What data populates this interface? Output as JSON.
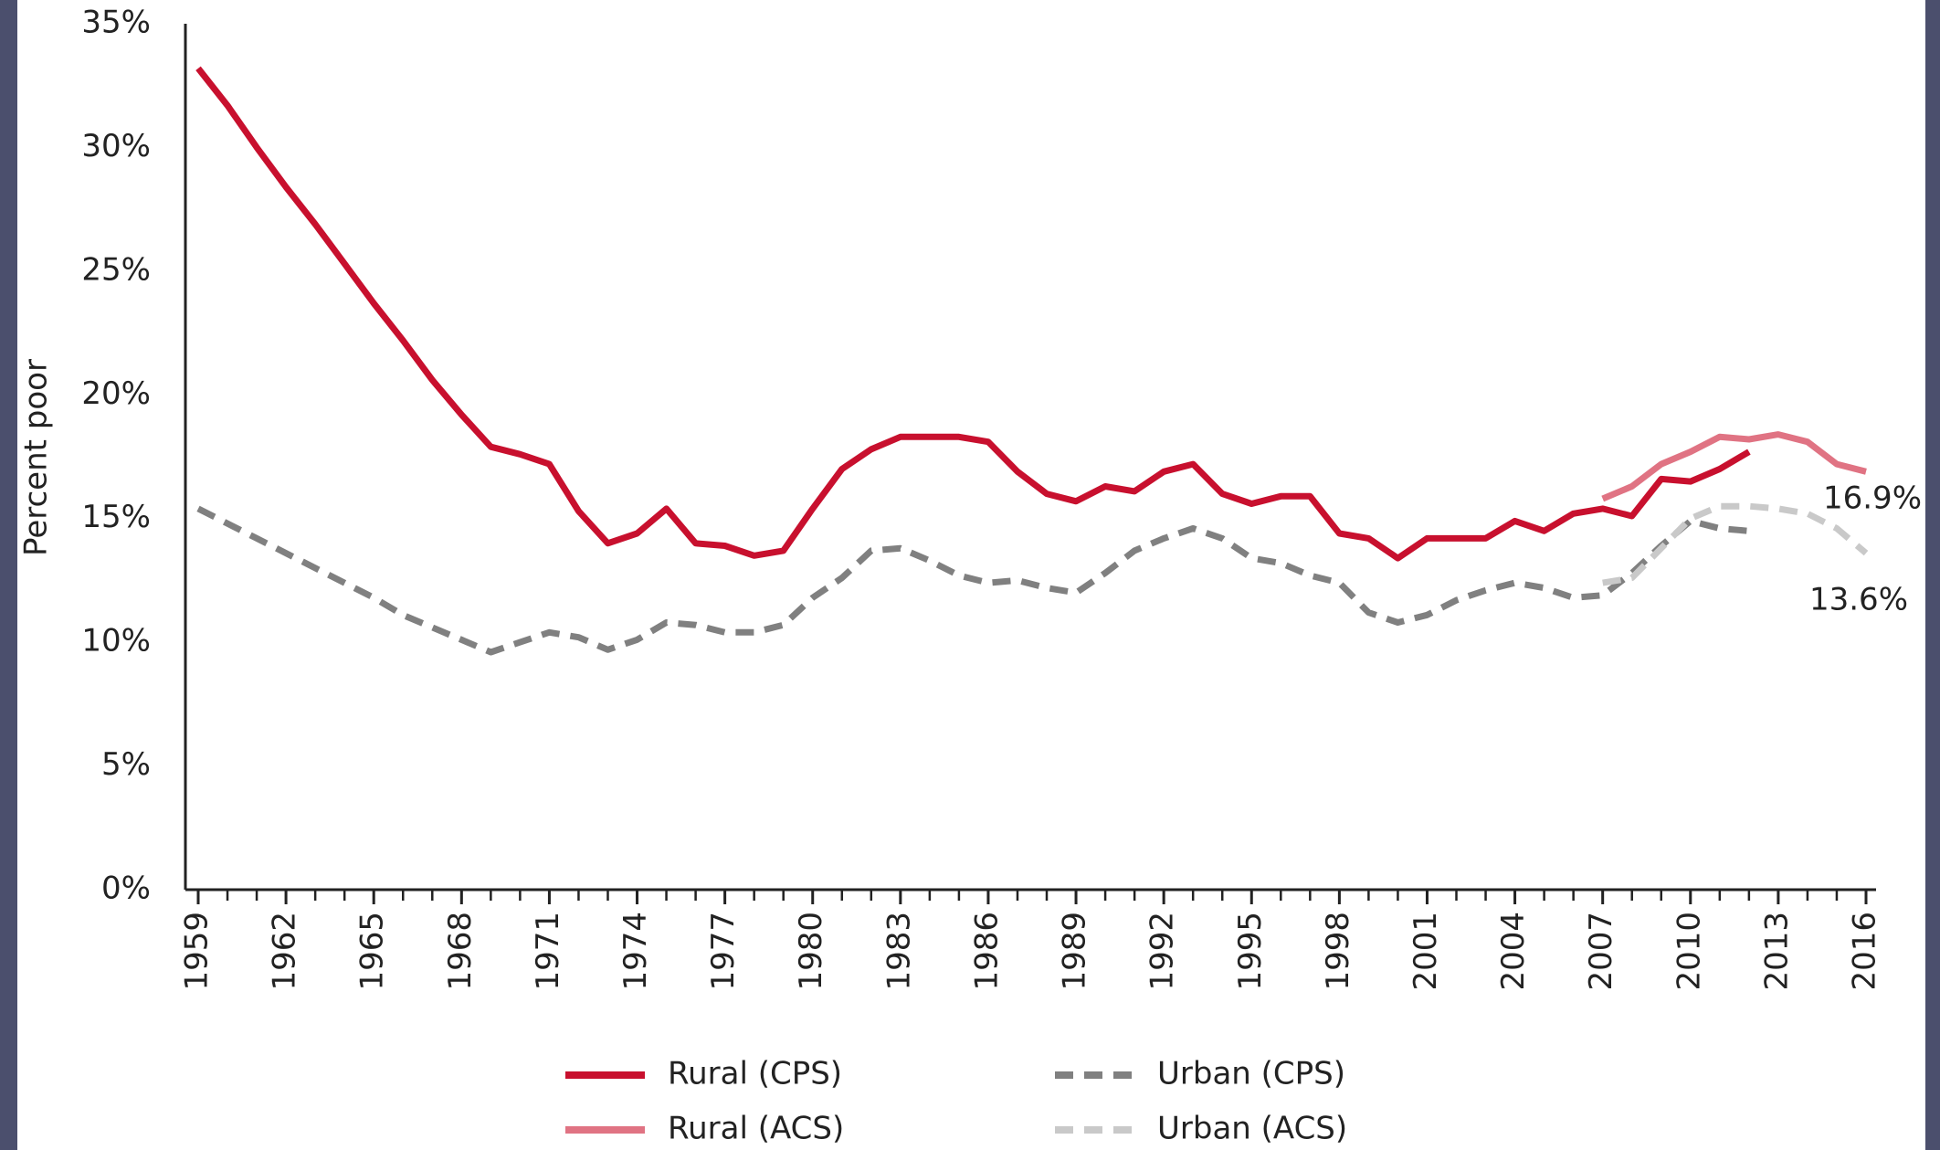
{
  "chart_data": {
    "type": "line",
    "y_label": "Percent poor",
    "x": [
      1959,
      1960,
      1961,
      1962,
      1963,
      1964,
      1965,
      1966,
      1967,
      1968,
      1969,
      1970,
      1971,
      1972,
      1973,
      1974,
      1975,
      1976,
      1977,
      1978,
      1979,
      1980,
      1981,
      1982,
      1983,
      1984,
      1985,
      1986,
      1987,
      1988,
      1989,
      1990,
      1991,
      1992,
      1993,
      1994,
      1995,
      1996,
      1997,
      1998,
      1999,
      2000,
      2001,
      2002,
      2003,
      2004,
      2005,
      2006,
      2007,
      2008,
      2009,
      2010,
      2011,
      2012,
      2013,
      2014,
      2015,
      2016
    ],
    "series": [
      {
        "name": "Rural (CPS)",
        "color": "#c8102e",
        "dashed": false,
        "values": [
          33.2,
          31.7,
          30.0,
          28.4,
          26.9,
          25.3,
          23.7,
          22.2,
          20.6,
          19.2,
          17.9,
          17.6,
          17.2,
          15.3,
          14.0,
          14.4,
          15.4,
          14.0,
          13.9,
          13.5,
          13.7,
          15.4,
          17.0,
          17.8,
          18.3,
          18.3,
          18.3,
          18.1,
          16.9,
          16.0,
          15.7,
          16.3,
          16.1,
          16.9,
          17.2,
          16.0,
          15.6,
          15.9,
          15.9,
          14.4,
          14.2,
          13.4,
          14.2,
          14.2,
          14.2,
          14.9,
          14.5,
          15.2,
          15.4,
          15.1,
          16.6,
          16.5,
          17.0,
          17.7,
          null,
          null,
          null,
          null
        ]
      },
      {
        "name": "Rural (ACS)",
        "color": "#e07383",
        "dashed": false,
        "values": [
          null,
          null,
          null,
          null,
          null,
          null,
          null,
          null,
          null,
          null,
          null,
          null,
          null,
          null,
          null,
          null,
          null,
          null,
          null,
          null,
          null,
          null,
          null,
          null,
          null,
          null,
          null,
          null,
          null,
          null,
          null,
          null,
          null,
          null,
          null,
          null,
          null,
          null,
          null,
          null,
          null,
          null,
          null,
          null,
          null,
          null,
          null,
          null,
          15.8,
          16.3,
          17.2,
          17.7,
          18.3,
          18.2,
          18.4,
          18.1,
          17.2,
          16.9
        ]
      },
      {
        "name": "Urban (CPS)",
        "color": "#808080",
        "dashed": true,
        "values": [
          15.4,
          14.8,
          14.2,
          13.6,
          13.0,
          12.4,
          11.8,
          11.1,
          10.6,
          10.1,
          9.6,
          10.0,
          10.4,
          10.2,
          9.7,
          10.1,
          10.8,
          10.7,
          10.4,
          10.4,
          10.7,
          11.8,
          12.6,
          13.7,
          13.8,
          13.3,
          12.7,
          12.4,
          12.5,
          12.2,
          12.0,
          12.8,
          13.7,
          14.2,
          14.6,
          14.2,
          13.4,
          13.2,
          12.7,
          12.4,
          11.2,
          10.8,
          11.1,
          11.7,
          12.1,
          12.4,
          12.2,
          11.8,
          11.9,
          12.8,
          13.9,
          14.9,
          14.6,
          14.5,
          null,
          null,
          null,
          null
        ]
      },
      {
        "name": "Urban (ACS)",
        "color": "#c9c9c9",
        "dashed": true,
        "values": [
          null,
          null,
          null,
          null,
          null,
          null,
          null,
          null,
          null,
          null,
          null,
          null,
          null,
          null,
          null,
          null,
          null,
          null,
          null,
          null,
          null,
          null,
          null,
          null,
          null,
          null,
          null,
          null,
          null,
          null,
          null,
          null,
          null,
          null,
          null,
          null,
          null,
          null,
          null,
          null,
          null,
          null,
          null,
          null,
          null,
          null,
          null,
          null,
          12.4,
          12.6,
          13.8,
          15.0,
          15.5,
          15.5,
          15.4,
          15.2,
          14.6,
          13.6
        ]
      }
    ],
    "annotations": [
      "16.9%",
      "13.6%"
    ],
    "xlim": [
      1959,
      2016
    ],
    "xticks": [
      1959,
      1962,
      1965,
      1968,
      1971,
      1974,
      1977,
      1980,
      1983,
      1986,
      1989,
      1992,
      1995,
      1998,
      2001,
      2004,
      2007,
      2010,
      2013,
      2016
    ],
    "ylim": [
      0,
      35
    ],
    "yticks": [
      {
        "value": 0,
        "label": "0%"
      },
      {
        "value": 5,
        "label": "5%"
      },
      {
        "value": 10,
        "label": "10%"
      },
      {
        "value": 15,
        "label": "15%"
      },
      {
        "value": 20,
        "label": "20%"
      },
      {
        "value": 25,
        "label": "25%"
      },
      {
        "value": 30,
        "label": "30%"
      },
      {
        "value": 35,
        "label": "35%"
      }
    ],
    "grid": false
  }
}
